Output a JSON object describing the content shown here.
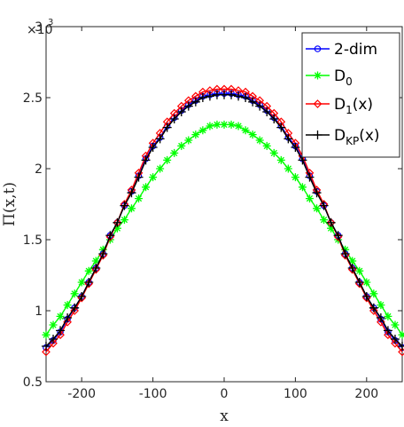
{
  "chart_data": {
    "type": "line",
    "xlabel": "x",
    "ylabel": "Π(x,t)",
    "y_multiplier": {
      "base": "×10",
      "exponent": "3"
    },
    "xlim": [
      -250,
      250
    ],
    "ylim": [
      0.5,
      3.0
    ],
    "x_ticks": [
      -200,
      -100,
      0,
      100,
      200
    ],
    "x_tick_labels": [
      "-200",
      "-100",
      "0",
      "100",
      "200"
    ],
    "y_ticks": [
      0.5,
      1.0,
      1.5,
      2.0,
      2.5,
      3.0
    ],
    "y_tick_labels": [
      "0.5",
      "1",
      "1.5",
      "2",
      "2.5",
      "3"
    ],
    "x": [
      -250,
      -240,
      -230,
      -220,
      -210,
      -200,
      -190,
      -180,
      -170,
      -160,
      -150,
      -140,
      -130,
      -120,
      -110,
      -100,
      -90,
      -80,
      -70,
      -60,
      -50,
      -40,
      -30,
      -20,
      -10,
      0,
      10,
      20,
      30,
      40,
      50,
      60,
      70,
      80,
      90,
      100,
      110,
      120,
      130,
      140,
      150,
      160,
      170,
      180,
      190,
      200,
      210,
      220,
      230,
      240,
      250
    ],
    "legend_position": "top-right",
    "series": [
      {
        "name": "2-dim",
        "name_sub": "",
        "name_suffix": "",
        "color": "#0000ff",
        "marker": "circle",
        "values": [
          0.74,
          0.79,
          0.85,
          0.94,
          1.02,
          1.1,
          1.2,
          1.3,
          1.4,
          1.53,
          1.62,
          1.74,
          1.84,
          1.95,
          2.07,
          2.16,
          2.22,
          2.3,
          2.36,
          2.41,
          2.45,
          2.48,
          2.51,
          2.52,
          2.53,
          2.53,
          2.53,
          2.52,
          2.51,
          2.48,
          2.45,
          2.41,
          2.36,
          2.3,
          2.22,
          2.16,
          2.07,
          1.95,
          1.84,
          1.74,
          1.62,
          1.53,
          1.4,
          1.3,
          1.2,
          1.1,
          1.02,
          0.94,
          0.85,
          0.79,
          0.74
        ]
      },
      {
        "name": "D",
        "name_sub": "0",
        "name_suffix": "",
        "color": "#00ff00",
        "marker": "asterisk",
        "values": [
          0.83,
          0.9,
          0.96,
          1.04,
          1.12,
          1.2,
          1.28,
          1.35,
          1.43,
          1.5,
          1.58,
          1.64,
          1.72,
          1.79,
          1.87,
          1.94,
          2.0,
          2.06,
          2.11,
          2.16,
          2.2,
          2.24,
          2.27,
          2.3,
          2.31,
          2.31,
          2.31,
          2.3,
          2.27,
          2.24,
          2.2,
          2.16,
          2.11,
          2.06,
          2.0,
          1.94,
          1.87,
          1.79,
          1.72,
          1.64,
          1.58,
          1.5,
          1.43,
          1.35,
          1.28,
          1.2,
          1.12,
          1.04,
          0.96,
          0.9,
          0.83
        ]
      },
      {
        "name": "D",
        "name_sub": "1",
        "name_suffix": "(x)",
        "color": "#ff0000",
        "marker": "diamond",
        "values": [
          0.71,
          0.77,
          0.83,
          0.92,
          1.0,
          1.09,
          1.19,
          1.29,
          1.39,
          1.52,
          1.62,
          1.75,
          1.85,
          1.97,
          2.09,
          2.18,
          2.25,
          2.33,
          2.39,
          2.44,
          2.48,
          2.51,
          2.54,
          2.55,
          2.56,
          2.56,
          2.56,
          2.55,
          2.54,
          2.51,
          2.48,
          2.44,
          2.39,
          2.33,
          2.25,
          2.18,
          2.09,
          1.97,
          1.85,
          1.75,
          1.62,
          1.52,
          1.39,
          1.29,
          1.19,
          1.09,
          1.0,
          0.92,
          0.83,
          0.77,
          0.71
        ]
      },
      {
        "name": "D",
        "name_sub": "KP",
        "name_suffix": "(x)",
        "color": "#000000",
        "marker": "plus",
        "values": [
          0.75,
          0.8,
          0.86,
          0.95,
          1.02,
          1.1,
          1.2,
          1.3,
          1.4,
          1.53,
          1.62,
          1.74,
          1.83,
          1.94,
          2.06,
          2.15,
          2.21,
          2.29,
          2.35,
          2.4,
          2.44,
          2.47,
          2.5,
          2.51,
          2.52,
          2.52,
          2.52,
          2.51,
          2.5,
          2.47,
          2.44,
          2.4,
          2.35,
          2.29,
          2.21,
          2.15,
          2.06,
          1.94,
          1.83,
          1.74,
          1.62,
          1.53,
          1.4,
          1.3,
          1.2,
          1.1,
          1.02,
          0.95,
          0.86,
          0.8,
          0.75
        ]
      }
    ]
  }
}
